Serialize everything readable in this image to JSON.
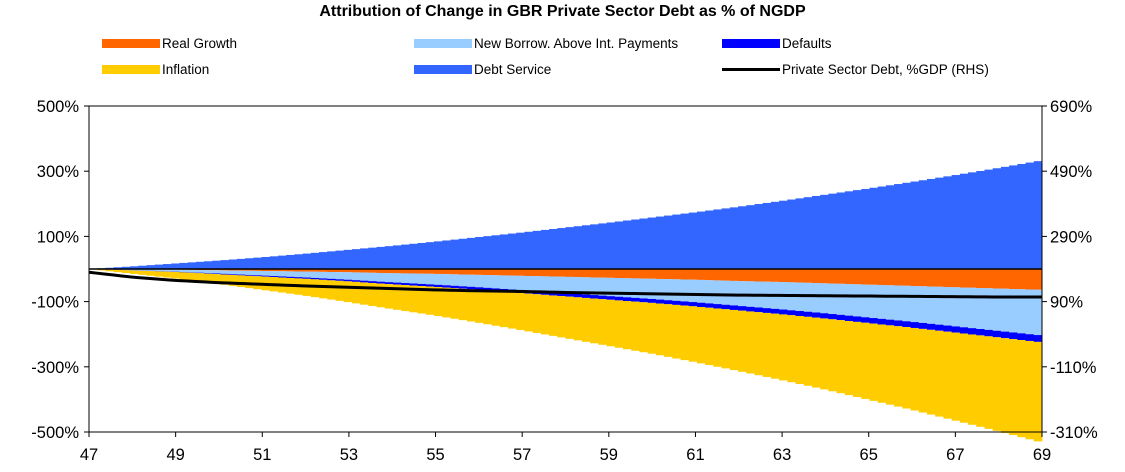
{
  "chart_data": {
    "type": "area",
    "title": "Attribution of Change in GBR Private Sector Debt as % of NGDP",
    "x_tick_labels": [
      "47",
      "49",
      "51",
      "53",
      "55",
      "57",
      "59",
      "61",
      "63",
      "65",
      "67",
      "69"
    ],
    "x_range": [
      47,
      69
    ],
    "y_left_ticks": [
      "500%",
      "300%",
      "100%",
      "-100%",
      "-300%",
      "-500%"
    ],
    "y_left_range": [
      -500,
      500
    ],
    "y_right_ticks": [
      "690%",
      "490%",
      "290%",
      "90%",
      "-110%",
      "-310%"
    ],
    "y_right_range": [
      -310,
      690
    ],
    "legend_placement": "top",
    "grid": false,
    "x": [
      47,
      48,
      49,
      50,
      51,
      52,
      53,
      54,
      55,
      56,
      57,
      58,
      59,
      60,
      61,
      62,
      63,
      64,
      65,
      66,
      67,
      68,
      69
    ],
    "series": [
      {
        "name": "Real Growth",
        "color": "#ff6600",
        "axis": "left",
        "values": [
          0,
          -1,
          -2,
          -4,
          -6,
          -8,
          -10,
          -13,
          -15,
          -18,
          -21,
          -24,
          -27,
          -30,
          -33,
          -37,
          -40,
          -44,
          -48,
          -52,
          -56,
          -60,
          -64
        ]
      },
      {
        "name": "New Borrow. Above Int. Payments",
        "color": "#99ccff",
        "axis": "left",
        "values": [
          0,
          -3,
          -6,
          -10,
          -14,
          -18,
          -23,
          -28,
          -33,
          -38,
          -44,
          -50,
          -56,
          -62,
          -69,
          -76,
          -84,
          -92,
          -101,
          -110,
          -120,
          -130,
          -140
        ]
      },
      {
        "name": "Defaults",
        "color": "#0000ff",
        "axis": "left",
        "values": [
          0,
          -0.5,
          -1,
          -2,
          -3,
          -4,
          -5,
          -6,
          -7,
          -8,
          -9,
          -10,
          -11,
          -12,
          -13,
          -14,
          -15,
          -16,
          -17,
          -18,
          -19,
          -20,
          -21
        ]
      },
      {
        "name": "Inflation",
        "color": "#ffcc00",
        "axis": "left",
        "values": [
          0,
          -10,
          -20,
          -30,
          -41,
          -52,
          -64,
          -76,
          -88,
          -101,
          -114,
          -128,
          -142,
          -156,
          -171,
          -186,
          -202,
          -218,
          -235,
          -252,
          -270,
          -288,
          -307
        ]
      },
      {
        "name": "Debt Service",
        "color": "#3366ff",
        "axis": "left",
        "values": [
          0,
          8,
          17,
          26,
          36,
          47,
          59,
          71,
          84,
          98,
          112,
          127,
          142,
          158,
          174,
          191,
          209,
          228,
          247,
          267,
          288,
          310,
          333
        ]
      },
      {
        "name": "Private Sector Debt, %GDP (RHS)",
        "color": "#000000",
        "axis": "right",
        "values": [
          180,
          165,
          155,
          148,
          143,
          138,
          134,
          130,
          126,
          123,
          121,
          118,
          116,
          114,
          112,
          110,
          109,
          108,
          107,
          106,
          105,
          104,
          104
        ]
      }
    ]
  }
}
